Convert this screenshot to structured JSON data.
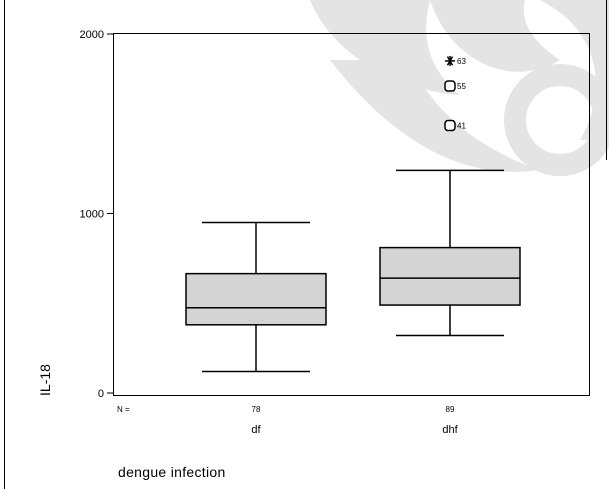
{
  "chart_data": {
    "type": "boxplot",
    "ylabel": "IL-18",
    "xlabel": "dengue infection",
    "ylim": [
      0,
      2000
    ],
    "yticks": [
      0,
      1000,
      2000
    ],
    "n_prefix": "N =",
    "box_fill": "#d4d4d4",
    "watermark_color": "#e4e4e4",
    "categories": [
      "df",
      "dhf"
    ],
    "groups": [
      {
        "name": "df",
        "n": "78",
        "whisker_low": 120,
        "q1": 380,
        "median": 475,
        "q3": 665,
        "whisker_high": 950,
        "outliers": []
      },
      {
        "name": "dhf",
        "n": "89",
        "whisker_low": 320,
        "q1": 490,
        "median": 640,
        "q3": 810,
        "whisker_high": 1240,
        "outliers": [
          {
            "value": 1490,
            "label": "41",
            "marker": "circle"
          },
          {
            "value": 1710,
            "label": "55",
            "marker": "circle"
          },
          {
            "value": 1850,
            "label": "63",
            "marker": "star"
          }
        ]
      }
    ]
  }
}
